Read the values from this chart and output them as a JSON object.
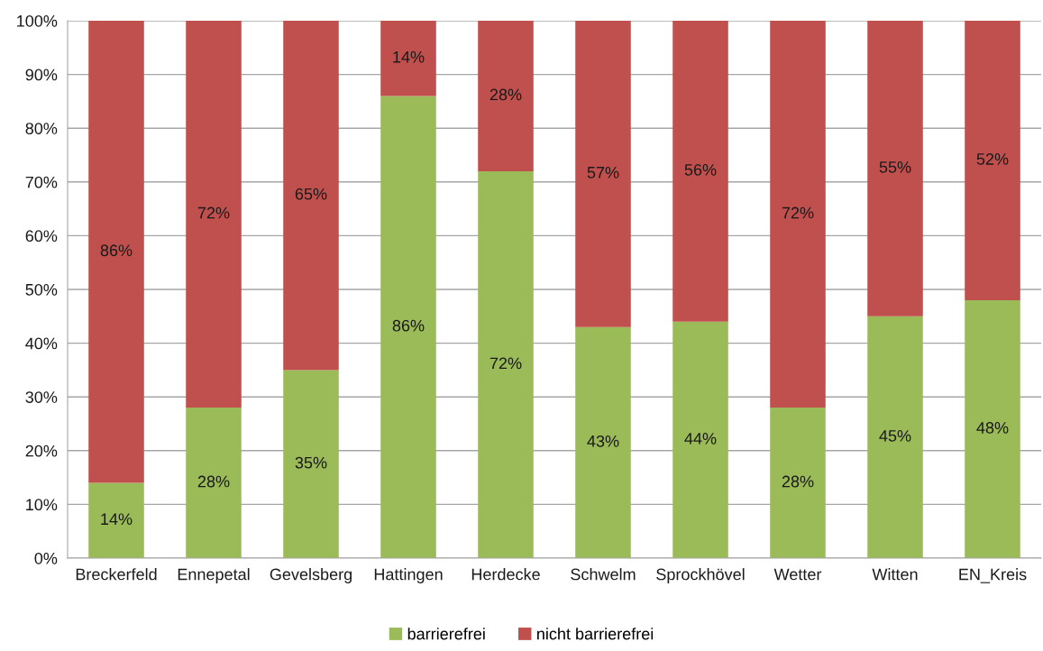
{
  "chart_data": {
    "type": "bar",
    "stacked": true,
    "categories": [
      "Breckerfeld",
      "Ennepetal",
      "Gevelsberg",
      "Hattingen",
      "Herdecke",
      "Schwelm",
      "Sprockhövel",
      "Wetter",
      "Witten",
      "EN_Kreis"
    ],
    "series": [
      {
        "name": "barrierefrei",
        "color": "#9bbb59",
        "values": [
          14,
          28,
          35,
          86,
          72,
          43,
          44,
          28,
          45,
          48
        ],
        "value_labels": [
          "14%",
          "28%",
          "35%",
          "86%",
          "72%",
          "43%",
          "44%",
          "28%",
          "45%",
          "48%"
        ]
      },
      {
        "name": "nicht barrierefrei",
        "color": "#c0504d",
        "values": [
          86,
          72,
          65,
          14,
          28,
          57,
          56,
          72,
          55,
          52
        ],
        "value_labels": [
          "86%",
          "72%",
          "65%",
          "14%",
          "28%",
          "57%",
          "56%",
          "72%",
          "55%",
          "52%"
        ]
      }
    ],
    "ylim": [
      0,
      100
    ],
    "yticks": [
      {
        "value": 0,
        "label": "0%"
      },
      {
        "value": 10,
        "label": "10%"
      },
      {
        "value": 20,
        "label": "20%"
      },
      {
        "value": 30,
        "label": "30%"
      },
      {
        "value": 40,
        "label": "40%"
      },
      {
        "value": 50,
        "label": "50%"
      },
      {
        "value": 60,
        "label": "60%"
      },
      {
        "value": 70,
        "label": "70%"
      },
      {
        "value": 80,
        "label": "80%"
      },
      {
        "value": 90,
        "label": "90%"
      },
      {
        "value": 100,
        "label": "100%"
      }
    ],
    "grid": "y",
    "legend": "bottom"
  }
}
